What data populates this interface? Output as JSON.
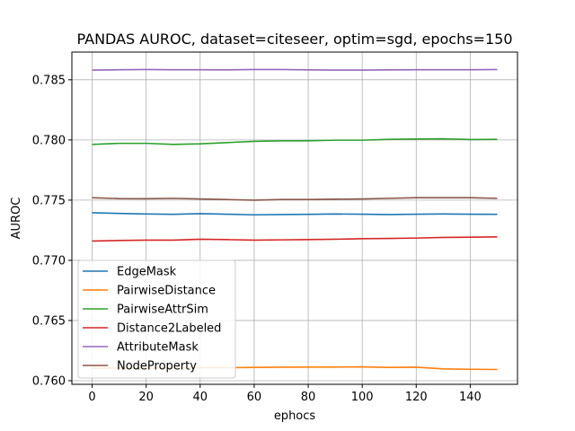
{
  "chart_data": {
    "type": "line",
    "title": "PANDAS AUROC, dataset=citeseer, optim=sgd, epochs=150",
    "xlabel": "ephocs",
    "ylabel": "AUROC",
    "xlim": [
      -7.5,
      157.5
    ],
    "ylim": [
      0.7597,
      0.7873
    ],
    "xticks": [
      0,
      20,
      40,
      60,
      80,
      100,
      120,
      140
    ],
    "yticks": [
      0.76,
      0.765,
      0.77,
      0.775,
      0.78,
      0.785
    ],
    "ytick_labels": [
      "0.760",
      "0.765",
      "0.770",
      "0.775",
      "0.780",
      "0.785"
    ],
    "grid": true,
    "legend_position": "lower-left",
    "x": [
      0,
      10,
      20,
      30,
      40,
      50,
      60,
      70,
      80,
      90,
      100,
      110,
      120,
      130,
      140,
      150
    ],
    "series": [
      {
        "name": "EdgeMask",
        "color": "#1f77b4",
        "values": [
          0.77395,
          0.7739,
          0.77385,
          0.77382,
          0.77388,
          0.77383,
          0.77378,
          0.7738,
          0.77382,
          0.77385,
          0.77383,
          0.7738,
          0.77383,
          0.77385,
          0.77383,
          0.77382
        ]
      },
      {
        "name": "PairwiseDistance",
        "color": "#ff7f0e",
        "values": [
          0.76105,
          0.76105,
          0.76106,
          0.76106,
          0.76108,
          0.76108,
          0.7611,
          0.76112,
          0.76113,
          0.76113,
          0.76115,
          0.7611,
          0.76112,
          0.76098,
          0.76095,
          0.76093
        ]
      },
      {
        "name": "PairwiseAttrSim",
        "color": "#2ca02c",
        "values": [
          0.77963,
          0.77972,
          0.77972,
          0.77963,
          0.77968,
          0.77978,
          0.77988,
          0.77993,
          0.77993,
          0.77998,
          0.77998,
          0.78005,
          0.78008,
          0.7801,
          0.78003,
          0.78005
        ]
      },
      {
        "name": "Distance2Labeled",
        "color": "#d62728",
        "values": [
          0.7716,
          0.77165,
          0.77168,
          0.77168,
          0.77175,
          0.77172,
          0.77168,
          0.7717,
          0.77172,
          0.77175,
          0.7718,
          0.77182,
          0.77185,
          0.7719,
          0.77192,
          0.77195
        ]
      },
      {
        "name": "AttributeMask",
        "color": "#9467bd",
        "values": [
          0.7858,
          0.78583,
          0.78585,
          0.78583,
          0.78583,
          0.78582,
          0.78585,
          0.78585,
          0.78582,
          0.7858,
          0.7858,
          0.78582,
          0.78583,
          0.78583,
          0.78583,
          0.78585
        ]
      },
      {
        "name": "NodeProperty",
        "color": "#8c564b",
        "values": [
          0.7752,
          0.77513,
          0.77512,
          0.77515,
          0.7751,
          0.77505,
          0.775,
          0.77505,
          0.77505,
          0.77508,
          0.7751,
          0.77515,
          0.7752,
          0.7752,
          0.7752,
          0.77515
        ]
      }
    ]
  }
}
